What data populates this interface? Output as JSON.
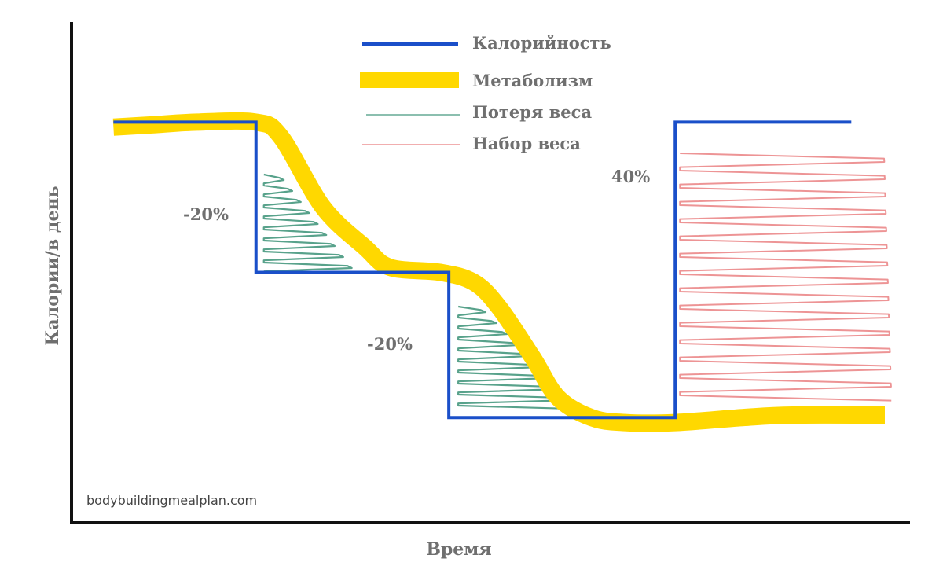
{
  "chart_data": {
    "type": "line",
    "title": "",
    "xlabel": "Время",
    "ylabel": "Калории/в день",
    "x_ticks": false,
    "y_ticks": false,
    "grid": false,
    "legend_position": "top-center",
    "x_range": [
      0,
      100
    ],
    "y_range": [
      0,
      100
    ],
    "series": [
      {
        "name": "Калорийность",
        "color": "#1a4fc9",
        "style": "step",
        "points": [
          [
            5,
            80
          ],
          [
            22,
            80
          ],
          [
            22,
            50
          ],
          [
            45,
            50
          ],
          [
            45,
            21
          ],
          [
            72,
            21
          ],
          [
            72,
            80
          ],
          [
            93,
            80
          ]
        ]
      },
      {
        "name": "Метаболизм",
        "color": "#ffd800",
        "style": "smooth",
        "points": [
          [
            5,
            79
          ],
          [
            10,
            79.5
          ],
          [
            15,
            80
          ],
          [
            22,
            80
          ],
          [
            25,
            77
          ],
          [
            30,
            63
          ],
          [
            35,
            55
          ],
          [
            38,
            51
          ],
          [
            44,
            50
          ],
          [
            48,
            48
          ],
          [
            51,
            43
          ],
          [
            55,
            33
          ],
          [
            58,
            25
          ],
          [
            62,
            21
          ],
          [
            66,
            20
          ],
          [
            72,
            20
          ],
          [
            80,
            21
          ],
          [
            86,
            21.5
          ],
          [
            97,
            21.5
          ]
        ]
      }
    ],
    "shaded_regions": [
      {
        "name": "Потеря веса",
        "color": "#2e8b6e"
      },
      {
        "name": "Набор веса",
        "color": "#e8797b"
      }
    ],
    "annotations": [
      "-20%",
      "-20%",
      "40%"
    ],
    "watermark": "bodybuildingmealplan.com"
  }
}
